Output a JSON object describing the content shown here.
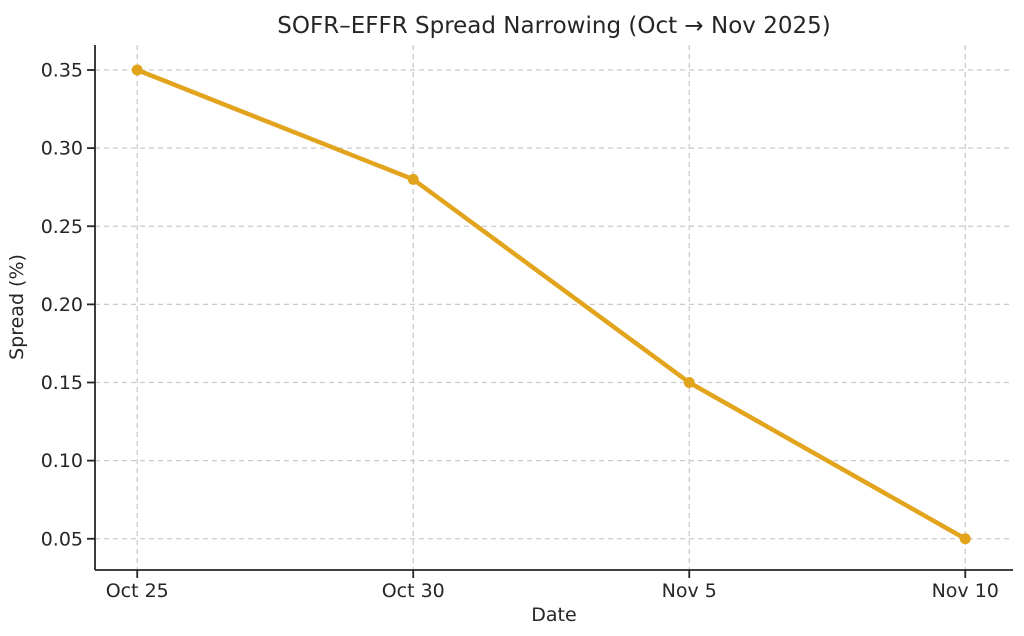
{
  "chart_data": {
    "type": "line",
    "title": "SOFR–EFFR Spread Narrowing (Oct → Nov 2025)",
    "xlabel": "Date",
    "ylabel": "Spread (%)",
    "categories": [
      "Oct 25",
      "Oct 30",
      "Nov 5",
      "Nov 10"
    ],
    "values": [
      0.35,
      0.28,
      0.15,
      0.05
    ],
    "series": [
      {
        "name": "SOFR-EFFR spread",
        "values": [
          0.35,
          0.28,
          0.15,
          0.05
        ]
      }
    ],
    "yticks": [
      0.05,
      0.1,
      0.15,
      0.2,
      0.25,
      0.3,
      0.35
    ],
    "ytick_labels": [
      "0.05",
      "0.10",
      "0.15",
      "0.20",
      "0.25",
      "0.30",
      "0.35"
    ],
    "ylim": [
      0.03,
      0.366
    ],
    "grid": true,
    "grid_style": "dashed",
    "legend_position": "none",
    "marker": "circle",
    "colors": {
      "line": "#E2A41D",
      "marker": "#E2A41D",
      "text": "#262626",
      "axis": "#262626",
      "grid": "#CBCBCB",
      "background": "#FFFFFF"
    }
  }
}
